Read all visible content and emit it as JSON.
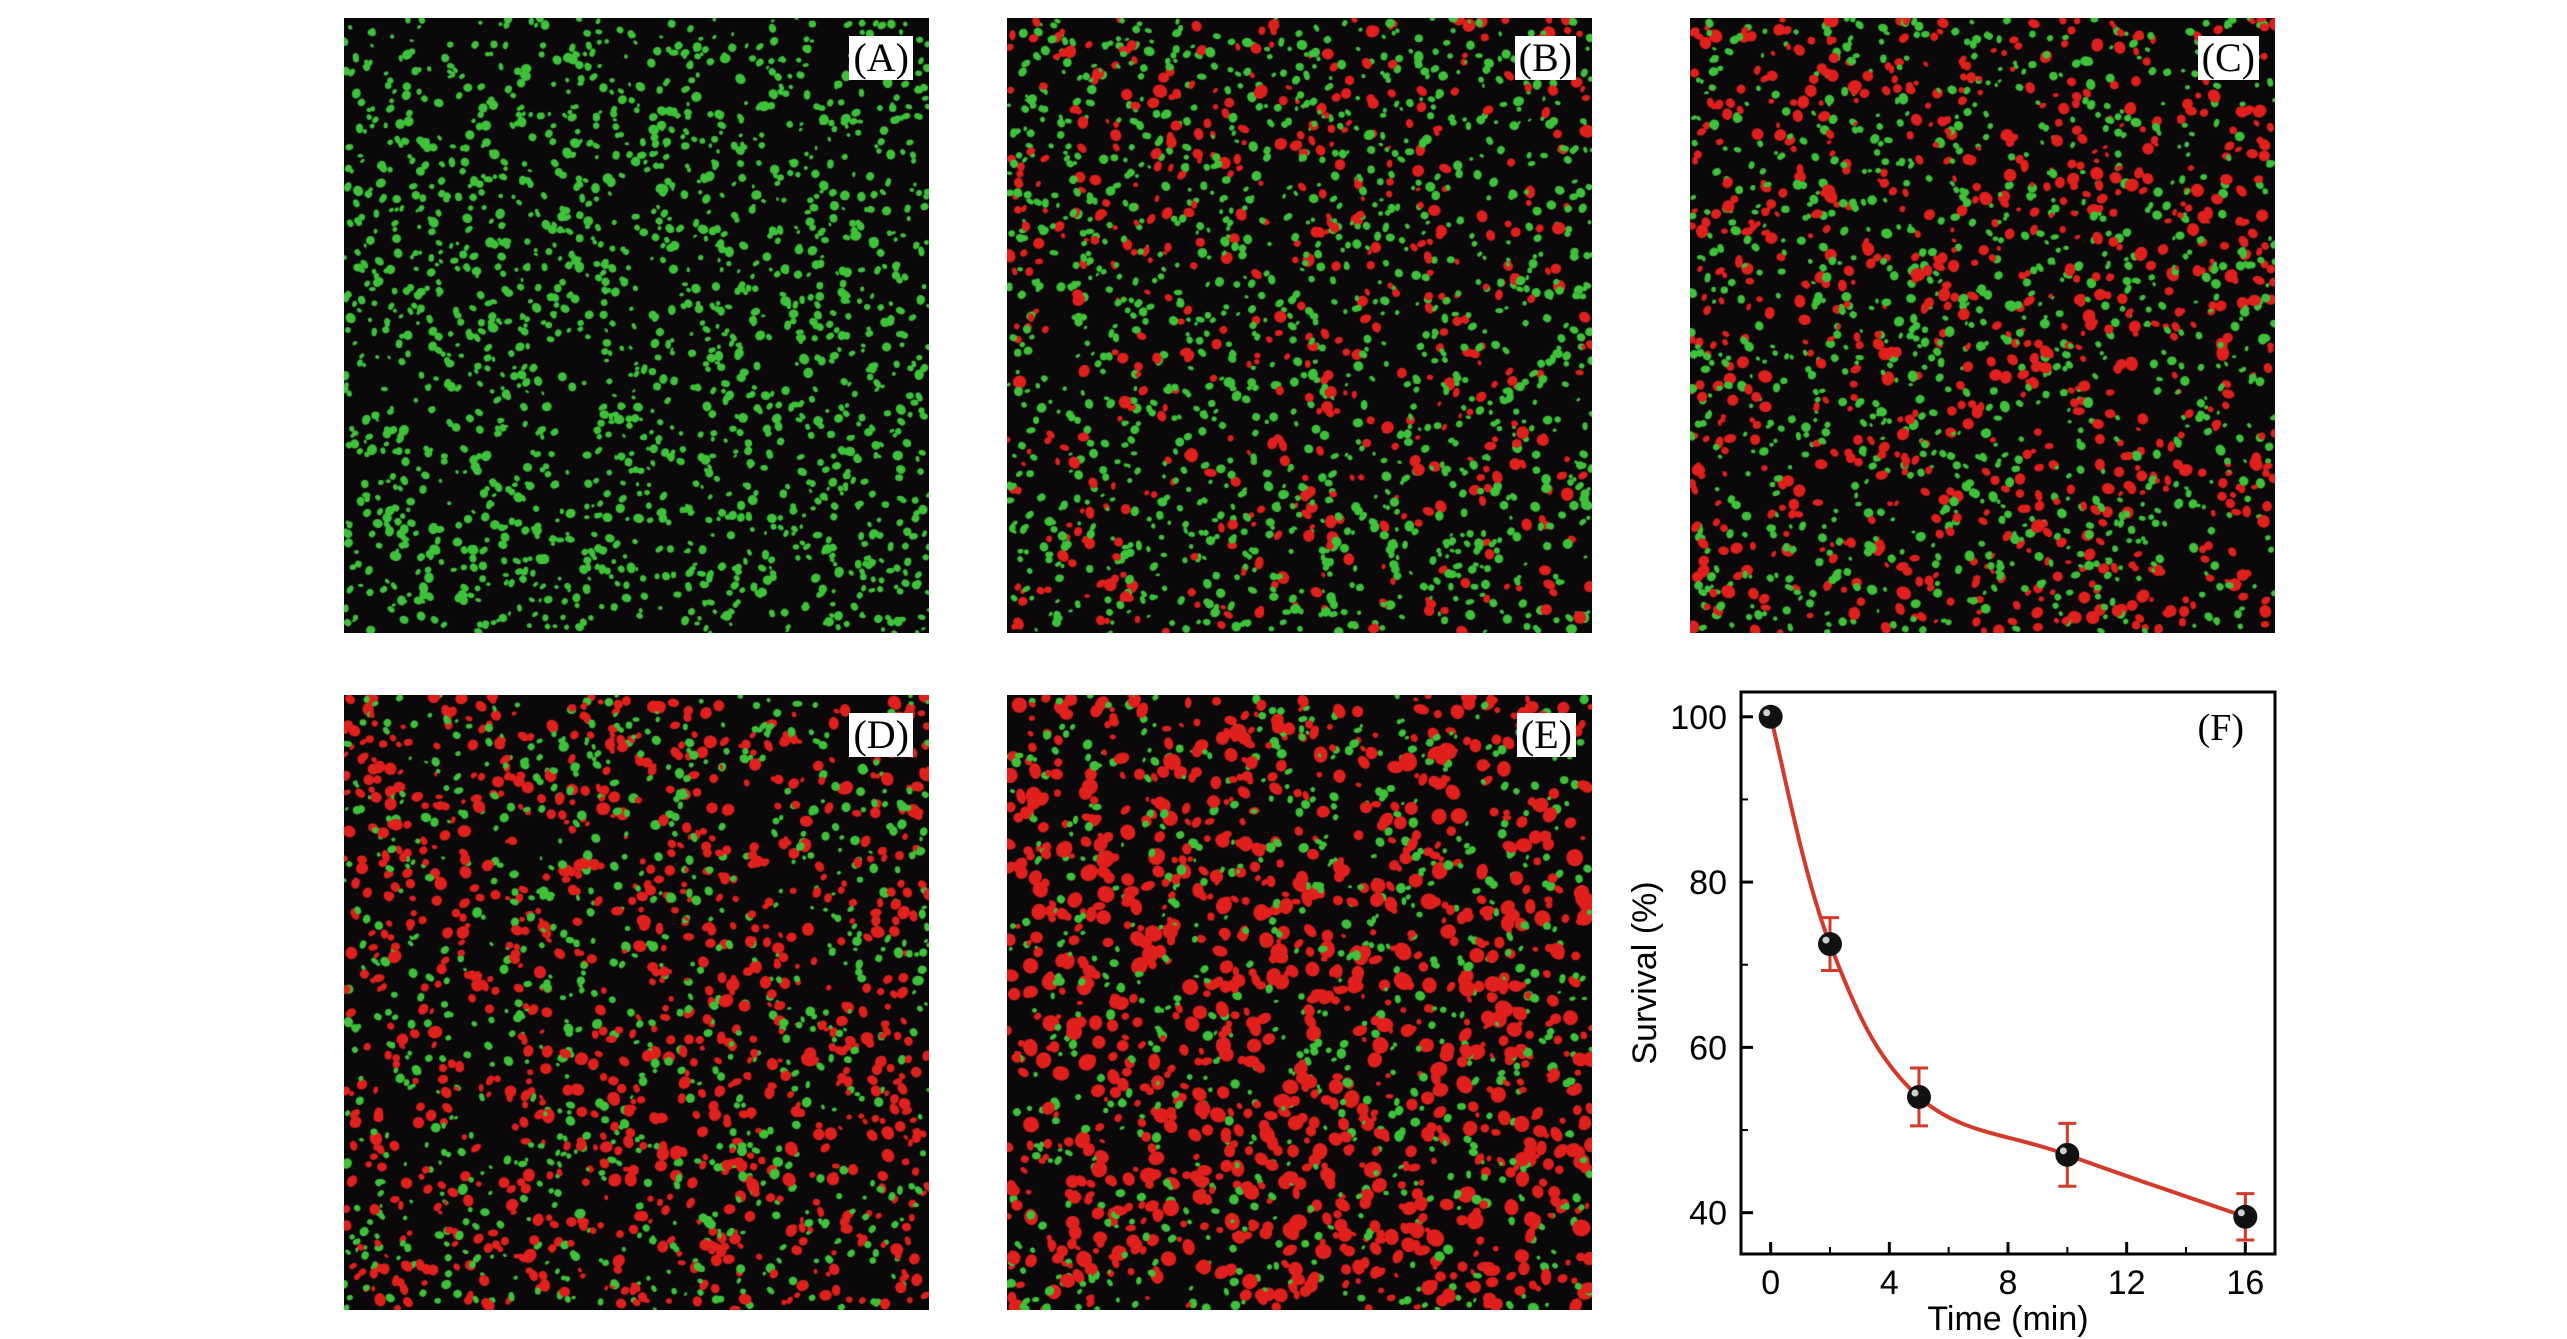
{
  "panels": [
    {
      "id": "a",
      "label": "(A)",
      "green_fraction": 1.0
    },
    {
      "id": "b",
      "label": "(B)",
      "green_fraction": 0.72
    },
    {
      "id": "c",
      "label": "(C)",
      "green_fraction": 0.54
    },
    {
      "id": "d",
      "label": "(D)",
      "green_fraction": 0.47
    },
    {
      "id": "e",
      "label": "(E)",
      "green_fraction": 0.39
    }
  ],
  "colors": {
    "background": "#0a0808",
    "live_cells": "#3ec23a",
    "dead_cells": "#e0201c",
    "curve": "#d23a2a",
    "marker": "#111111"
  },
  "chart_data": {
    "type": "line",
    "panel_label": "(F)",
    "xlabel": "Time (min)",
    "ylabel": "Survival (%)",
    "xlim": [
      -1,
      17
    ],
    "ylim": [
      35,
      103
    ],
    "xticks": [
      0,
      4,
      8,
      12,
      16
    ],
    "yticks": [
      40,
      60,
      80,
      100
    ],
    "grid": false,
    "series": [
      {
        "x": [
          0,
          2,
          5,
          10,
          16
        ],
        "y": [
          100,
          72.5,
          54,
          47,
          39.5
        ],
        "error": [
          0,
          3.2,
          3.5,
          3.8,
          2.8
        ]
      }
    ]
  }
}
